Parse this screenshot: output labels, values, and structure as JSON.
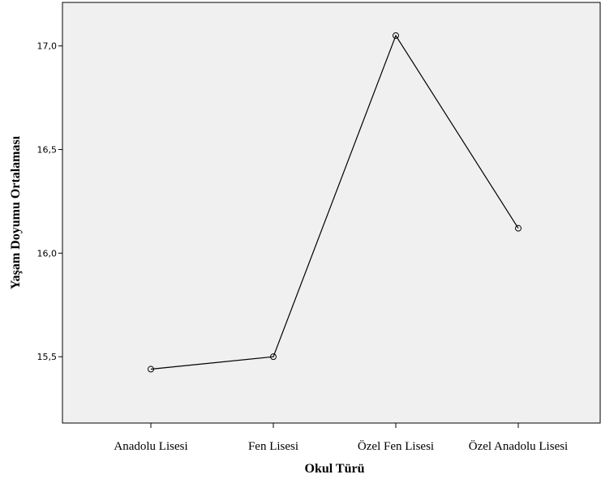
{
  "chart_data": {
    "type": "line",
    "categories": [
      "Anadolu Lisesi",
      "Fen Lisesi",
      "Özel Fen Lisesi",
      "Özel Anadolu Lisesi"
    ],
    "values": [
      15.44,
      15.5,
      17.05,
      16.12
    ],
    "yticks": [
      "15,5",
      "16,0",
      "16,5",
      "17,0"
    ],
    "ytick_values": [
      15.5,
      16.0,
      16.5,
      17.0
    ],
    "ylim": [
      15.18,
      17.21
    ],
    "xlabel": "Okul Türü",
    "ylabel": "Yaşam Doyumu Ortalaması",
    "grid": false,
    "marker": "circle",
    "colors": {
      "plot_background": "#f0f0f0",
      "line": "#000000"
    }
  }
}
